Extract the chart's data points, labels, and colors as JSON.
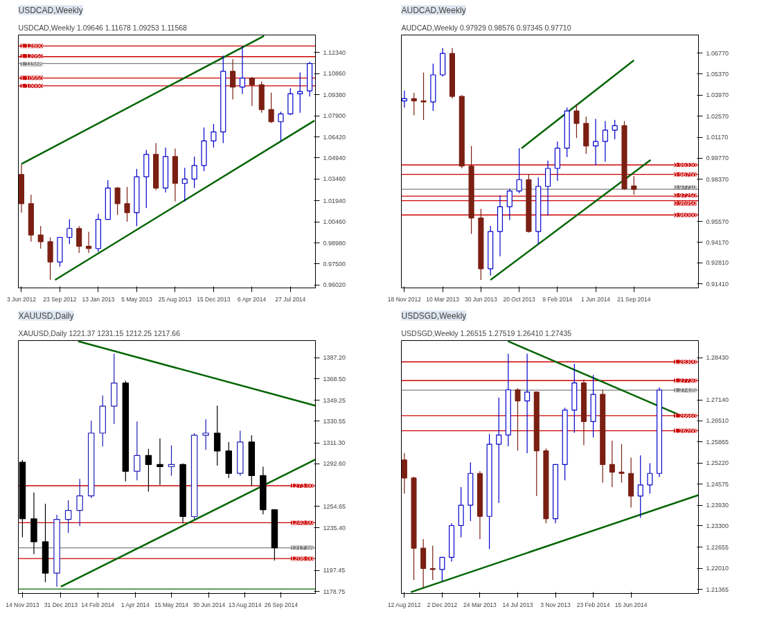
{
  "chart_data": [
    {
      "type": "candlestick",
      "title": "USDCAD,Weekly",
      "subtitle": "USDCAD,Weekly 1.09646 1.11678 1.09253 1.11568",
      "x": [
        "2012-06-03",
        "2012-07-01",
        "2012-07-29",
        "2012-08-26",
        "2012-09-23",
        "2012-10-21",
        "2012-11-18",
        "2012-12-16",
        "2013-01-13",
        "2013-02-10",
        "2013-03-10",
        "2013-04-07",
        "2013-05-05",
        "2013-06-02",
        "2013-06-30",
        "2013-07-28",
        "2013-08-25",
        "2013-09-22",
        "2013-10-20",
        "2013-11-17",
        "2013-12-15",
        "2014-01-12",
        "2014-02-09",
        "2014-03-09",
        "2014-04-06",
        "2014-05-04",
        "2014-06-01",
        "2014-06-29",
        "2014-07-27",
        "2014-08-24",
        "2014-09-21"
      ],
      "ohlc": [
        [
          1.0378,
          1.0449,
          1.011,
          1.0173
        ],
        [
          1.0173,
          1.0236,
          0.9906,
          0.9953
        ],
        [
          0.9953,
          1.0016,
          0.9858,
          0.9906
        ],
        [
          0.9906,
          0.9937,
          0.9638,
          0.9764
        ],
        [
          0.9764,
          0.9937,
          0.9732,
          0.9937
        ],
        [
          0.9937,
          1.0063,
          0.989,
          0.9999
        ],
        [
          0.9999,
          1.0016,
          0.9827,
          0.9874
        ],
        [
          0.9874,
          0.9976,
          0.9827,
          0.9858
        ],
        [
          0.9858,
          1.0102,
          0.9835,
          1.0063
        ],
        [
          1.0063,
          1.0338,
          1.0063,
          1.0283
        ],
        [
          1.0283,
          1.0291,
          1.0094,
          1.0173
        ],
        [
          1.0173,
          1.0291,
          1.0047,
          1.011
        ],
        [
          1.011,
          1.0417,
          1.0016,
          1.0362
        ],
        [
          1.0362,
          1.0551,
          1.0142,
          1.0519
        ],
        [
          1.0519,
          1.0598,
          1.0268,
          1.0283
        ],
        [
          1.0283,
          1.0567,
          1.0252,
          1.0504
        ],
        [
          1.0504,
          1.0559,
          1.0189,
          1.0315
        ],
        [
          1.0315,
          1.0425,
          1.0189,
          1.0346
        ],
        [
          1.0346,
          1.0504,
          1.0283,
          1.0441
        ],
        [
          1.0441,
          1.0708,
          1.0401,
          1.0614
        ],
        [
          1.0614,
          1.0732,
          1.0567,
          1.0677
        ],
        [
          1.0677,
          1.1212,
          1.0598,
          1.1102
        ],
        [
          1.1102,
          1.1188,
          1.0905,
          1.0992
        ],
        [
          1.0992,
          1.1275,
          1.0944,
          1.1055
        ],
        [
          1.1055,
          1.1063,
          1.0858,
          1.1007
        ],
        [
          1.1007,
          1.1031,
          1.0811,
          1.0834
        ],
        [
          1.0834,
          1.0952,
          1.074,
          1.0748
        ],
        [
          1.0748,
          1.0818,
          1.0614,
          1.0803
        ],
        [
          1.0803,
          1.0984,
          1.0795,
          1.0944
        ],
        [
          1.0944,
          1.1094,
          1.0811,
          1.096
        ],
        [
          1.0965,
          1.1168,
          1.0925,
          1.1157
        ]
      ],
      "colors": [
        "#7a1f12",
        "#7a1f12",
        "#7a1f12",
        "#7a1f12",
        "#0000cc",
        "#0000cc",
        "#7a1f12",
        "#7a1f12",
        "#0000cc",
        "#0000cc",
        "#7a1f12",
        "#7a1f12",
        "#0000cc",
        "#0000cc",
        "#7a1f12",
        "#0000cc",
        "#7a1f12",
        "#0000cc",
        "#0000cc",
        "#0000cc",
        "#0000cc",
        "#0000cc",
        "#7a1f12",
        "#0000cc",
        "#7a1f12",
        "#7a1f12",
        "#7a1f12",
        "#0000cc",
        "#0000cc",
        "#0000cc",
        "#0000cc"
      ],
      "series": [
        {
          "type": "line",
          "color": "#006400",
          "x": [
            "2012-06-03",
            "2014-05-11"
          ],
          "values": [
            1.0452,
            1.135
          ]
        },
        {
          "type": "line",
          "color": "#006400",
          "x": [
            "2012-09-09",
            "2014-10-05"
          ],
          "values": [
            0.9638,
            1.0756
          ]
        }
      ],
      "xlim": [
        "2012-05-25",
        "2014-10-08"
      ],
      "ylim": [
        0.9582,
        1.1357
      ],
      "xticks": [
        {
          "value": "2012-06-03",
          "label": "3 Jun 2012"
        },
        {
          "value": "2012-09-23",
          "label": "23 Sep 2012"
        },
        {
          "value": "2013-01-13",
          "label": "13 Jan 2013"
        },
        {
          "value": "2013-05-05",
          "label": "5 May 2013"
        },
        {
          "value": "2013-08-25",
          "label": "25 Aug 2013"
        },
        {
          "value": "2013-12-15",
          "label": "15 Dec 2013"
        },
        {
          "value": "2014-04-06",
          "label": "6 Apr 2014"
        },
        {
          "value": "2014-07-27",
          "label": "27 Jul 2014"
        }
      ],
      "yticks": [
        {
          "value": 1.1234,
          "label": "1.12340"
        },
        {
          "value": 1.1086,
          "label": "1.10860"
        },
        {
          "value": 1.0938,
          "label": "1.09380"
        },
        {
          "value": 1.079,
          "label": "1.07900"
        },
        {
          "value": 1.0642,
          "label": "1.06420"
        },
        {
          "value": 1.0494,
          "label": "1.04940"
        },
        {
          "value": 1.0346,
          "label": "1.03460"
        },
        {
          "value": 1.0194,
          "label": "1.01940"
        },
        {
          "value": 1.0046,
          "label": "1.00460"
        },
        {
          "value": 0.9898,
          "label": "0.98980"
        },
        {
          "value": 0.975,
          "label": "0.97500"
        },
        {
          "value": 0.9602,
          "label": "0.96020"
        }
      ],
      "ref_lines": [
        {
          "axis": "y",
          "value": 1.128,
          "label": "1.12800",
          "color": "#cc0000"
        },
        {
          "axis": "y",
          "value": 1.1205,
          "label": "1.12050",
          "color": "#cc0000"
        },
        {
          "axis": "y",
          "value": 1.11568,
          "label": "1.11568",
          "color": "#808080"
        },
        {
          "axis": "y",
          "value": 1.1055,
          "label": "1.10550",
          "color": "#cc0000"
        },
        {
          "axis": "y",
          "value": 1.1,
          "label": "1.10000",
          "color": "#cc0000"
        }
      ]
    },
    {
      "type": "candlestick",
      "title": "AUDCAD,Weekly",
      "subtitle": "AUDCAD,Weekly 0.97929 0.98576 0.97345 0.97710",
      "x": [
        "2012-11-18",
        "2012-12-16",
        "2013-01-13",
        "2013-02-10",
        "2013-03-10",
        "2013-04-07",
        "2013-05-05",
        "2013-06-02",
        "2013-06-30",
        "2013-07-28",
        "2013-08-25",
        "2013-09-22",
        "2013-10-20",
        "2013-11-17",
        "2013-12-15",
        "2014-01-12",
        "2014-02-09",
        "2014-03-09",
        "2014-04-06",
        "2014-05-04",
        "2014-06-01",
        "2014-06-29",
        "2014-07-27",
        "2014-08-24",
        "2014-09-21"
      ],
      "ohlc": [
        [
          1.0359,
          1.0427,
          1.0314,
          1.0374
        ],
        [
          1.0374,
          1.0412,
          1.0262,
          1.0359
        ],
        [
          1.0359,
          1.0547,
          1.0232,
          1.0352
        ],
        [
          1.0352,
          1.0607,
          1.0292,
          1.0532
        ],
        [
          1.0532,
          1.0711,
          1.052,
          1.0674
        ],
        [
          1.0674,
          1.0711,
          1.0374,
          1.0389
        ],
        [
          1.0389,
          1.0397,
          0.991,
          0.9925
        ],
        [
          0.9925,
          1.0059,
          0.9475,
          0.958
        ],
        [
          0.958,
          0.964,
          0.9168,
          0.9242
        ],
        [
          0.9242,
          0.9527,
          0.9197,
          0.949
        ],
        [
          0.949,
          0.973,
          0.9325,
          0.9655
        ],
        [
          0.9655,
          0.9775,
          0.9565,
          0.976
        ],
        [
          0.976,
          1.0044,
          0.9745,
          0.9835
        ],
        [
          0.9835,
          0.9872,
          0.9482,
          0.949
        ],
        [
          0.949,
          0.985,
          0.9407,
          0.979
        ],
        [
          0.979,
          0.9962,
          0.9595,
          0.991
        ],
        [
          0.991,
          1.0089,
          0.9827,
          1.0044
        ],
        [
          1.0044,
          1.0314,
          0.9985,
          1.0292
        ],
        [
          1.0292,
          1.0337,
          1.0112,
          1.0209
        ],
        [
          1.0209,
          1.0254,
          1.0007,
          1.0059
        ],
        [
          1.0059,
          1.0239,
          0.9932,
          1.0089
        ],
        [
          1.0089,
          1.0224,
          0.9955,
          1.0164
        ],
        [
          1.0164,
          1.0232,
          1.0104,
          1.0194
        ],
        [
          1.0194,
          1.0224,
          0.9767,
          0.9775
        ],
        [
          0.9793,
          0.9858,
          0.9735,
          0.9771
        ]
      ],
      "colors": [
        "#0000cc",
        "#7a1f12",
        "#7a1f12",
        "#0000cc",
        "#0000cc",
        "#7a1f12",
        "#7a1f12",
        "#7a1f12",
        "#7a1f12",
        "#0000cc",
        "#0000cc",
        "#0000cc",
        "#0000cc",
        "#7a1f12",
        "#0000cc",
        "#0000cc",
        "#0000cc",
        "#0000cc",
        "#7a1f12",
        "#7a1f12",
        "#0000cc",
        "#0000cc",
        "#0000cc",
        "#7a1f12",
        "#7a1f12"
      ],
      "series": [
        {
          "type": "line",
          "color": "#006400",
          "x": [
            "2013-10-27",
            "2014-09-21"
          ],
          "values": [
            1.0044,
            1.0629
          ]
        },
        {
          "type": "line",
          "color": "#006400",
          "x": [
            "2013-07-28",
            "2014-11-09"
          ],
          "values": [
            0.9168,
            0.9966
          ]
        }
      ],
      "xlim": [
        "2012-11-09",
        "2015-03-29"
      ],
      "ylim": [
        0.9115,
        1.0797
      ],
      "xticks": [
        {
          "value": "2012-11-18",
          "label": "18 Nov 2012"
        },
        {
          "value": "2013-03-10",
          "label": "10 Mar 2013"
        },
        {
          "value": "2013-06-30",
          "label": "30 Jun 2013"
        },
        {
          "value": "2013-10-20",
          "label": "20 Oct 2013"
        },
        {
          "value": "2014-02-09",
          "label": "9 Feb 2014"
        },
        {
          "value": "2014-06-01",
          "label": "1 Jun 2014"
        },
        {
          "value": "2014-09-21",
          "label": "21 Sep 2014"
        }
      ],
      "yticks": [
        {
          "value": 1.0677,
          "label": "1.06770"
        },
        {
          "value": 1.0537,
          "label": "1.05370"
        },
        {
          "value": 1.0397,
          "label": "1.03970"
        },
        {
          "value": 1.0257,
          "label": "1.02570"
        },
        {
          "value": 1.0117,
          "label": "1.01170"
        },
        {
          "value": 0.9977,
          "label": "0.99770"
        },
        {
          "value": 0.9837,
          "label": "0.98370"
        },
        {
          "value": 0.9557,
          "label": "0.95570"
        },
        {
          "value": 0.9417,
          "label": "0.94170"
        },
        {
          "value": 0.9281,
          "label": "0.92810"
        },
        {
          "value": 0.9141,
          "label": "0.91410"
        }
      ],
      "ref_lines": [
        {
          "axis": "y",
          "value": 0.9933,
          "label": "0.99330",
          "color": "#cc0000"
        },
        {
          "axis": "y",
          "value": 0.987,
          "label": "0.98700",
          "color": "#cc0000"
        },
        {
          "axis": "y",
          "value": 0.9771,
          "label": "0.97710",
          "color": "#808080"
        },
        {
          "axis": "y",
          "value": 0.9725,
          "label": "0.97250",
          "color": "#cc0000"
        },
        {
          "axis": "y",
          "value": 0.9695,
          "label": "0.96950",
          "color": "#cc0000"
        },
        {
          "axis": "y",
          "value": 0.96,
          "label": "0.96000",
          "color": "#cc0000"
        }
      ]
    },
    {
      "type": "candlestick",
      "title": "XAUUSD,Daily",
      "subtitle": "XAUUSD,Daily 1221.37 1231.15 1212.25 1217.66",
      "x": [
        "2013-11-14",
        "2013-11-28",
        "2013-12-12",
        "2013-12-26",
        "2014-01-09",
        "2014-01-23",
        "2014-02-06",
        "2014-02-20",
        "2014-03-06",
        "2014-03-20",
        "2014-04-03",
        "2014-04-17",
        "2014-05-01",
        "2014-05-15",
        "2014-05-29",
        "2014-06-12",
        "2014-06-26",
        "2014-07-10",
        "2014-07-24",
        "2014-08-07",
        "2014-08-21",
        "2014-09-04",
        "2014-09-18"
      ],
      "ohlc": [
        [
          1294,
          1296,
          1227,
          1243.5
        ],
        [
          1243.5,
          1267,
          1212,
          1223
        ],
        [
          1223,
          1257,
          1187,
          1195
        ],
        [
          1195,
          1247,
          1183,
          1243
        ],
        [
          1243,
          1260,
          1231,
          1251
        ],
        [
          1251,
          1279,
          1237,
          1264
        ],
        [
          1264,
          1331,
          1262,
          1320
        ],
        [
          1320,
          1353.5,
          1308,
          1344
        ],
        [
          1344,
          1390.8,
          1328,
          1364.6
        ],
        [
          1364.6,
          1366.6,
          1276.8,
          1285.9
        ],
        [
          1285.9,
          1330.3,
          1277.8,
          1300
        ],
        [
          1300,
          1306,
          1267.7,
          1292
        ],
        [
          1292,
          1315.2,
          1273.8,
          1290
        ],
        [
          1290,
          1309,
          1281.9,
          1292
        ],
        [
          1292,
          1293,
          1239.5,
          1245.5
        ],
        [
          1245.5,
          1320,
          1243,
          1318
        ],
        [
          1318,
          1332.3,
          1305,
          1320
        ],
        [
          1320,
          1344.4,
          1291,
          1304
        ],
        [
          1304,
          1312,
          1279.8,
          1284
        ],
        [
          1284,
          1322.2,
          1282,
          1312
        ],
        [
          1312,
          1318,
          1272.8,
          1282
        ],
        [
          1282,
          1290,
          1247.5,
          1251.6
        ],
        [
          1251.6,
          1252,
          1206.2,
          1217.66
        ]
      ],
      "colors": [
        "#000000",
        "#000000",
        "#000000",
        "#1c1cb8",
        "#1c1cb8",
        "#1c1cb8",
        "#1c1cb8",
        "#1c1cb8",
        "#1c1cb8",
        "#000000",
        "#1c1cb8",
        "#000000",
        "#000000",
        "#1c1cb8",
        "#000000",
        "#1c1cb8",
        "#1c1cb8",
        "#000000",
        "#000000",
        "#1c1cb8",
        "#000000",
        "#000000",
        "#000000"
      ],
      "series": [
        {
          "type": "line",
          "color": "#006400",
          "x": [
            "2014-01-21",
            "2014-11-07"
          ],
          "values": [
            1401.9,
            1344.4
          ]
        },
        {
          "type": "line",
          "color": "#006400",
          "x": [
            "2013-12-31",
            "2014-11-07"
          ],
          "values": [
            1183,
            1296.4
          ]
        }
      ],
      "xlim": [
        "2013-11-09",
        "2014-11-07"
      ],
      "ylim": [
        1176.9,
        1402.5
      ],
      "xticks": [
        {
          "value": "2013-11-14",
          "label": "14 Nov 2013"
        },
        {
          "value": "2013-12-31",
          "label": "31 Dec 2013"
        },
        {
          "value": "2014-02-14",
          "label": "14 Feb 2014"
        },
        {
          "value": "2014-04-01",
          "label": "1 Apr 2014"
        },
        {
          "value": "2014-05-15",
          "label": "15 May 2014"
        },
        {
          "value": "2014-06-30",
          "label": "30 Jun 2014"
        },
        {
          "value": "2014-08-13",
          "label": "13 Aug 2014"
        },
        {
          "value": "2014-09-26",
          "label": "26 Sep 2014"
        }
      ],
      "yticks": [
        {
          "value": 1387.2,
          "label": "1387.20"
        },
        {
          "value": 1368.5,
          "label": "1368.50"
        },
        1349.25,
        1330.55,
        {
          "value": 1311.3,
          "label": "1311.30"
        },
        {
          "value": 1292.6,
          "label": "1292.60"
        },
        1254.65,
        {
          "value": 1235.4,
          "label": "1235.40"
        },
        1197.45,
        1178.75
      ],
      "ref_lines": [
        {
          "axis": "y",
          "value": 1273,
          "label": "1273.00",
          "color": "#cc0000"
        },
        {
          "axis": "y",
          "value": 1240,
          "label": "1240.00",
          "color": "#cc0000"
        },
        {
          "axis": "y",
          "value": 1217.66,
          "label": "1217.66",
          "color": "#808080"
        },
        {
          "axis": "y",
          "value": 1208,
          "label": "1208.00",
          "color": "#cc0000"
        },
        {
          "axis": "y",
          "value": 1180.9,
          "color": "#006400"
        }
      ]
    },
    {
      "type": "candlestick",
      "title": "USDSGD,Weekly",
      "subtitle": "USDSGD,Weekly 1.26515 1.27519 1.26410 1.27435",
      "x": [
        "2012-08-12",
        "2012-09-09",
        "2012-10-07",
        "2012-11-04",
        "2012-12-02",
        "2012-12-30",
        "2013-01-27",
        "2013-02-24",
        "2013-03-24",
        "2013-04-21",
        "2013-05-19",
        "2013-06-16",
        "2013-07-14",
        "2013-08-11",
        "2013-09-08",
        "2013-10-06",
        "2013-11-03",
        "2013-12-01",
        "2013-12-29",
        "2014-01-26",
        "2014-02-23",
        "2014-03-23",
        "2014-04-20",
        "2014-05-18",
        "2014-06-15",
        "2014-07-13",
        "2014-08-10",
        "2014-09-07"
      ],
      "ohlc": [
        [
          1.2531,
          1.2552,
          1.2428,
          1.2476
        ],
        [
          1.2476,
          1.248,
          1.2165,
          1.2262
        ],
        [
          1.2262,
          1.229,
          1.2141,
          1.22
        ],
        [
          1.22,
          1.227,
          1.2165,
          1.2197
        ],
        [
          1.2197,
          1.2234,
          1.2162,
          1.2234
        ],
        [
          1.2234,
          1.2338,
          1.2221,
          1.2331
        ],
        [
          1.2331,
          1.2448,
          1.2295,
          1.2393
        ],
        [
          1.2393,
          1.2524,
          1.2345,
          1.249
        ],
        [
          1.249,
          1.2497,
          1.229,
          1.2359
        ],
        [
          1.2359,
          1.261,
          1.2259,
          1.2579
        ],
        [
          1.2579,
          1.2721,
          1.24,
          1.2607
        ],
        [
          1.2607,
          1.2855,
          1.2573,
          1.2745
        ],
        [
          1.2745,
          1.275,
          1.2559,
          1.2711
        ],
        [
          1.2711,
          1.2855,
          1.2552,
          1.2738
        ],
        [
          1.2738,
          1.274,
          1.2421,
          1.2559
        ],
        [
          1.2559,
          1.2566,
          1.2338,
          1.2352
        ],
        [
          1.2352,
          1.2517,
          1.2338,
          1.2517
        ],
        [
          1.2517,
          1.269,
          1.2469,
          1.2683
        ],
        [
          1.2683,
          1.2824,
          1.2614,
          1.2766
        ],
        [
          1.2766,
          1.2776,
          1.2576,
          1.2648
        ],
        [
          1.2648,
          1.279,
          1.26,
          1.2731
        ],
        [
          1.2731,
          1.2745,
          1.2462,
          1.2517
        ],
        [
          1.2517,
          1.259,
          1.2448,
          1.2494
        ],
        [
          1.2494,
          1.2579,
          1.2462,
          1.249
        ],
        [
          1.249,
          1.2538,
          1.2386,
          1.2421
        ],
        [
          1.2421,
          1.2545,
          1.2355,
          1.2455
        ],
        [
          1.2455,
          1.2521,
          1.2428,
          1.249
        ],
        [
          1.249,
          1.2752,
          1.2479,
          1.2744
        ]
      ],
      "colors": [
        "#7a1f12",
        "#7a1f12",
        "#7a1f12",
        "#7a1f12",
        "#0000cc",
        "#0000cc",
        "#0000cc",
        "#0000cc",
        "#7a1f12",
        "#0000cc",
        "#0000cc",
        "#0000cc",
        "#7a1f12",
        "#0000cc",
        "#7a1f12",
        "#7a1f12",
        "#0000cc",
        "#0000cc",
        "#0000cc",
        "#7a1f12",
        "#0000cc",
        "#7a1f12",
        "#7a1f12",
        "#7a1f12",
        "#7a1f12",
        "#0000cc",
        "#0000cc",
        "#0000cc"
      ],
      "series": [
        {
          "type": "line",
          "color": "#006400",
          "x": [
            "2013-06-15",
            "2014-11-08"
          ],
          "values": [
            1.2893,
            1.2667
          ]
        },
        {
          "type": "line",
          "color": "#006400",
          "x": [
            "2012-08-31",
            "2015-01-01"
          ],
          "values": [
            1.2128,
            1.2424
          ]
        }
      ],
      "xlim": [
        "2012-08-03",
        "2015-01-01"
      ],
      "ylim": [
        1.2124,
        1.2895
      ],
      "xticks": [
        {
          "value": "2012-08-12",
          "label": "12 Aug 2012"
        },
        {
          "value": "2012-12-02",
          "label": "2 Dec 2012"
        },
        {
          "value": "2013-03-24",
          "label": "24 Mar 2013"
        },
        {
          "value": "2013-07-14",
          "label": "14 Jul 2013"
        },
        {
          "value": "2013-11-03",
          "label": "3 Nov 2013"
        },
        {
          "value": "2014-02-23",
          "label": "23 Feb 2014"
        },
        {
          "value": "2014-06-15",
          "label": "15 Jun 2014"
        }
      ],
      "yticks": [
        {
          "value": 1.2843,
          "label": "1.28430"
        },
        {
          "value": 1.2714,
          "label": "1.27140"
        },
        {
          "value": 1.2651,
          "label": "1.26510"
        },
        1.25865,
        {
          "value": 1.2522,
          "label": "1.25220"
        },
        1.24575,
        {
          "value": 1.2393,
          "label": "1.23930"
        },
        {
          "value": 1.233,
          "label": "1.23300"
        },
        1.22655,
        {
          "value": 1.2201,
          "label": "1.22010"
        },
        1.21365
      ],
      "ref_lines": [
        {
          "axis": "y",
          "value": 1.283,
          "label": "1.28300",
          "color": "#cc0000"
        },
        {
          "axis": "y",
          "value": 1.2773,
          "label": "1.27730",
          "color": "#cc0000"
        },
        {
          "axis": "y",
          "value": 1.27435,
          "label": "1.27435",
          "color": "#808080"
        },
        {
          "axis": "y",
          "value": 1.2666,
          "label": "1.26660",
          "color": "#cc0000"
        },
        {
          "axis": "y",
          "value": 1.262,
          "label": "1.26200",
          "color": "#cc0000"
        }
      ]
    }
  ]
}
